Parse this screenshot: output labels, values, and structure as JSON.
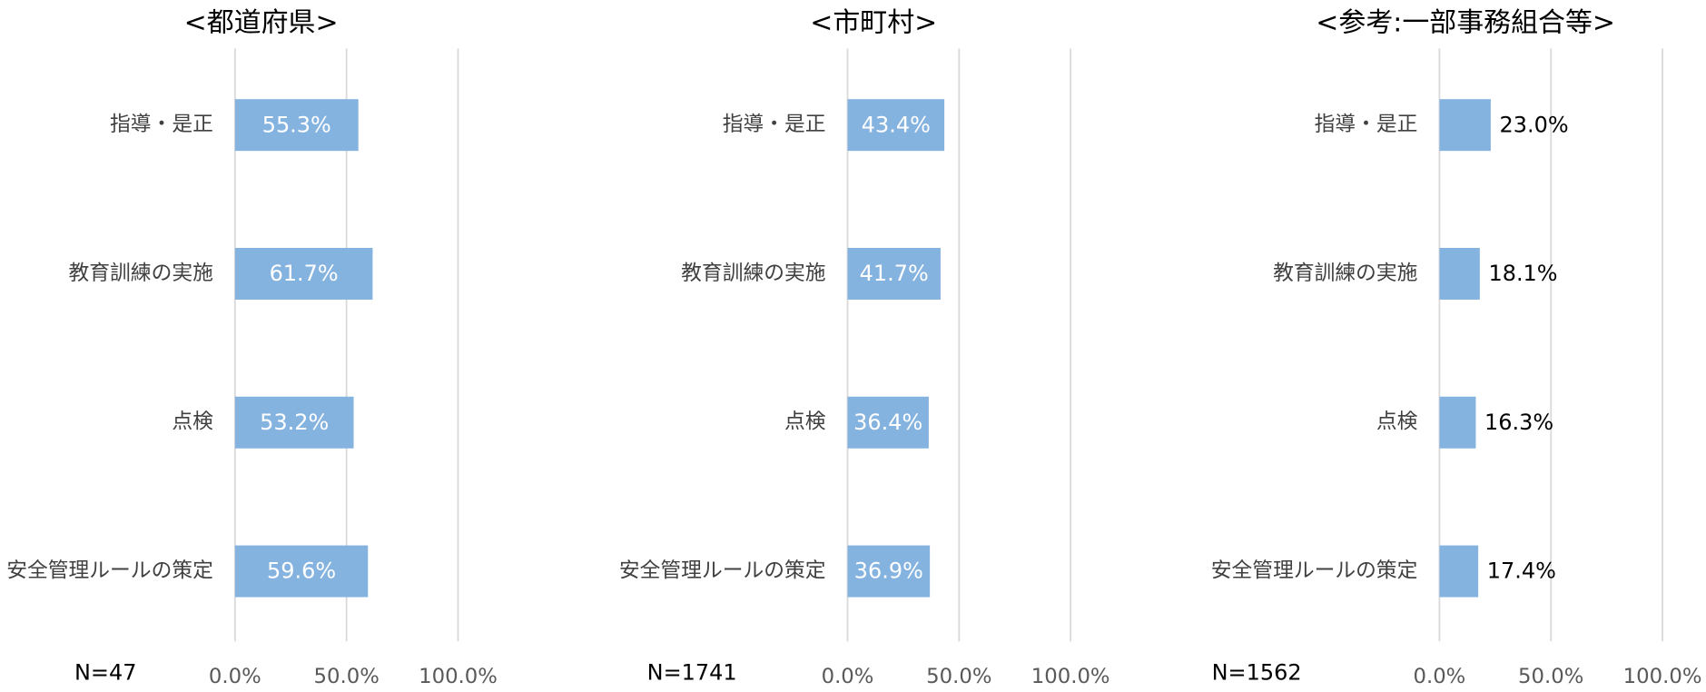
{
  "chart_data": [
    {
      "type": "bar",
      "title": "<都道府県>",
      "annotation": "N=47",
      "categories": [
        "指導・是正",
        "教育訓練の実施",
        "点検",
        "安全管理ルールの策定"
      ],
      "values": [
        55.3,
        61.7,
        53.2,
        59.6
      ],
      "value_labels": [
        "55.3%",
        "61.7%",
        "53.2%",
        "59.6%"
      ],
      "color": "#85b3e0",
      "label_position": "inside",
      "xlim": [
        0,
        100
      ],
      "xticks": [
        {
          "value": 0,
          "label": "0.0%"
        },
        {
          "value": 50,
          "label": "50.0%"
        },
        {
          "value": 100,
          "label": "100.0%"
        }
      ],
      "grid": true
    },
    {
      "type": "bar",
      "title": "<市町村>",
      "annotation": "N=1741",
      "categories": [
        "指導・是正",
        "教育訓練の実施",
        "点検",
        "安全管理ルールの策定"
      ],
      "values": [
        43.4,
        41.7,
        36.4,
        36.9
      ],
      "value_labels": [
        "43.4%",
        "41.7%",
        "36.4%",
        "36.9%"
      ],
      "color": "#85b3e0",
      "label_position": "inside",
      "xlim": [
        0,
        100
      ],
      "xticks": [
        {
          "value": 0,
          "label": "0.0%"
        },
        {
          "value": 50,
          "label": "50.0%"
        },
        {
          "value": 100,
          "label": "100.0%"
        }
      ],
      "grid": true
    },
    {
      "type": "bar",
      "title": "<参考:一部事務組合等>",
      "annotation": "N=1562",
      "categories": [
        "指導・是正",
        "教育訓練の実施",
        "点検",
        "安全管理ルールの策定"
      ],
      "values": [
        23.0,
        18.1,
        16.3,
        17.4
      ],
      "value_labels": [
        "23.0%",
        "18.1%",
        "16.3%",
        "17.4%"
      ],
      "color": "#85b3e0",
      "label_position": "outside",
      "xlim": [
        0,
        100
      ],
      "xticks": [
        {
          "value": 0,
          "label": "0.0%"
        },
        {
          "value": 50,
          "label": "50.0%"
        },
        {
          "value": 100,
          "label": "100.0%"
        }
      ],
      "grid": true
    }
  ]
}
